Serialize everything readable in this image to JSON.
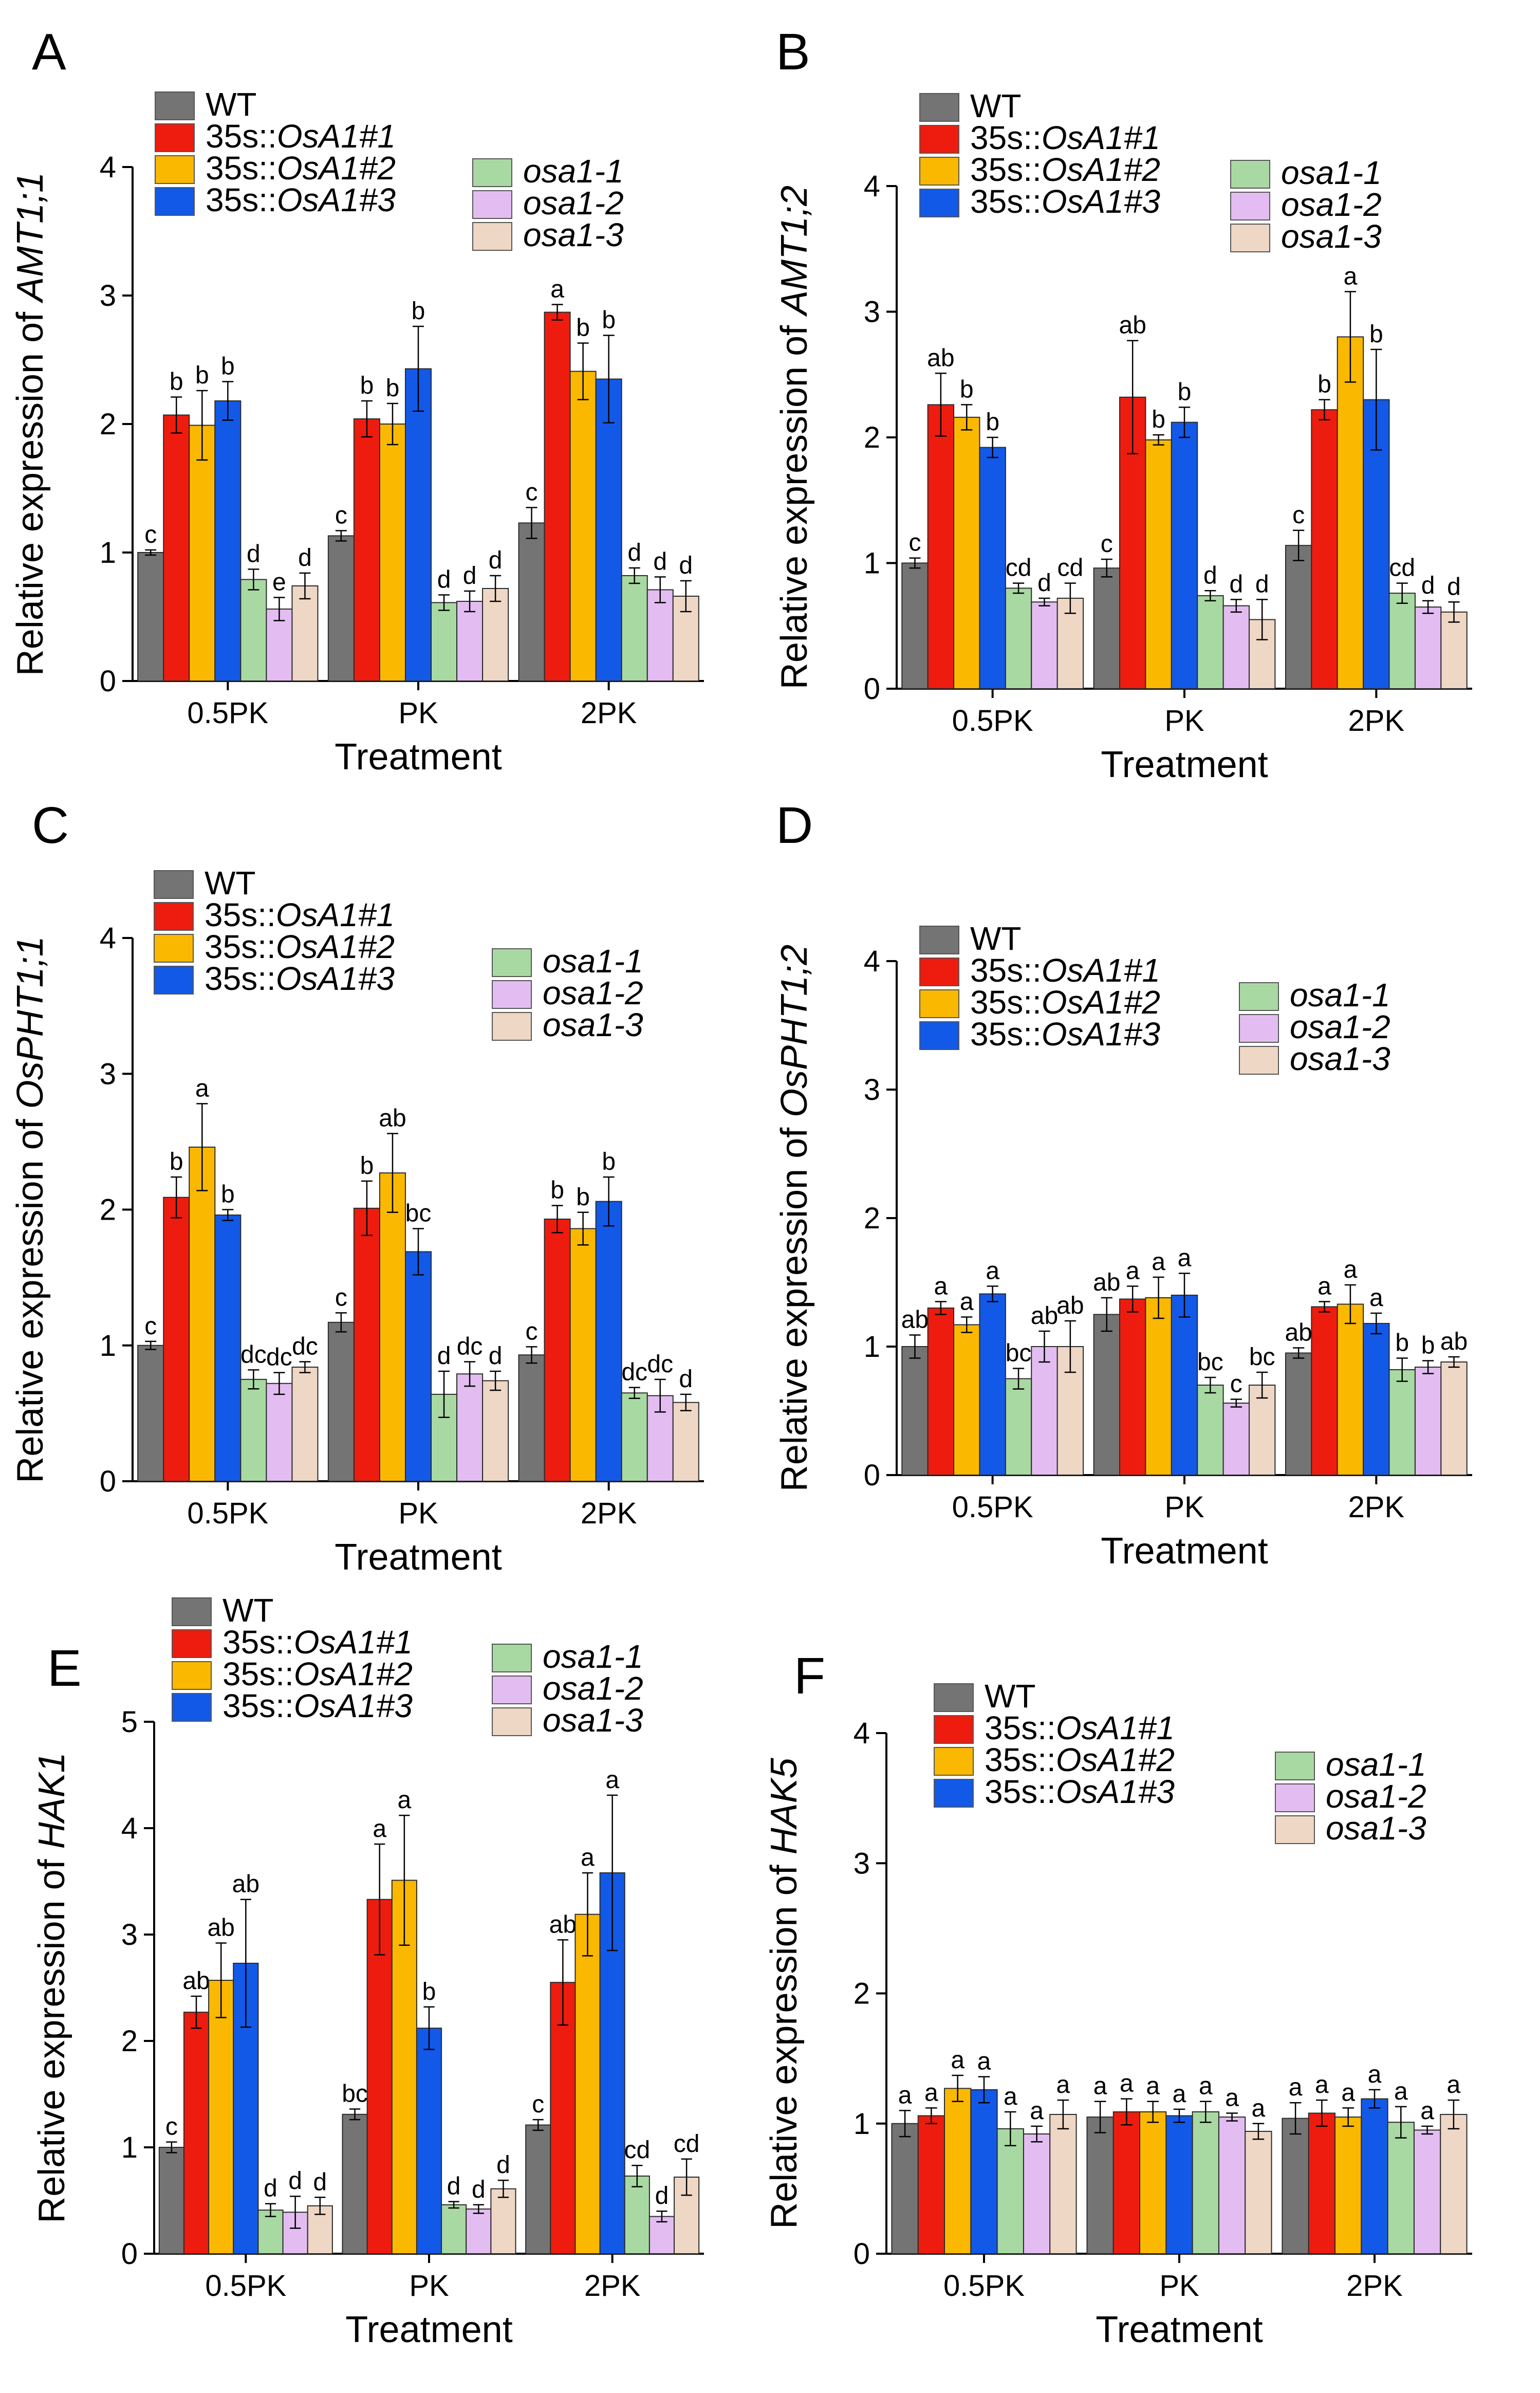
{
  "legend": {
    "items": [
      {
        "label": "WT",
        "italic": "",
        "color": "#747474"
      },
      {
        "label": "35s::",
        "italic": "OsA1#1",
        "color": "#ee1c0e"
      },
      {
        "label": "35s::",
        "italic": "OsA1#2",
        "color": "#fbb800"
      },
      {
        "label": "35s::",
        "italic": "OsA1#3",
        "color": "#1359e8"
      },
      {
        "label": "",
        "italic": "osa1-1",
        "color": "#a9d9a2"
      },
      {
        "label": "",
        "italic": "osa1-2",
        "color": "#e3bdf2"
      },
      {
        "label": "",
        "italic": "osa1-3",
        "color": "#efd7c5"
      }
    ]
  },
  "chart_data": [
    {
      "panel": "A",
      "type": "bar",
      "title": "",
      "ylabel_prefix": "Relative expression of ",
      "ylabel_gene": "AMT1;1",
      "xlabel": "Treatment",
      "ylim": [
        0,
        4
      ],
      "yticks": [
        "0",
        "1",
        "2",
        "3",
        "4"
      ],
      "categories": [
        "0.5PK",
        "PK",
        "2PK"
      ],
      "series": [
        {
          "name": "WT",
          "values": [
            1.0,
            1.13,
            1.23
          ],
          "errors": [
            0.02,
            0.04,
            0.12
          ],
          "letters": [
            "c",
            "c",
            "c"
          ]
        },
        {
          "name": "35s::OsA1#1",
          "values": [
            2.07,
            2.04,
            2.87
          ],
          "errors": [
            0.14,
            0.14,
            0.06
          ],
          "letters": [
            "b",
            "b",
            "a"
          ]
        },
        {
          "name": "35s::OsA1#2",
          "values": [
            1.99,
            2.0,
            2.41
          ],
          "errors": [
            0.27,
            0.16,
            0.22
          ],
          "letters": [
            "b",
            "b",
            "b"
          ]
        },
        {
          "name": "35s::OsA1#3",
          "values": [
            2.18,
            2.43,
            2.35
          ],
          "errors": [
            0.15,
            0.33,
            0.34
          ],
          "letters": [
            "b",
            "b",
            "b"
          ]
        },
        {
          "name": "osa1-1",
          "values": [
            0.79,
            0.61,
            0.82
          ],
          "errors": [
            0.08,
            0.06,
            0.06
          ],
          "letters": [
            "d",
            "d",
            "d"
          ]
        },
        {
          "name": "osa1-2",
          "values": [
            0.56,
            0.62,
            0.71
          ],
          "errors": [
            0.09,
            0.08,
            0.1
          ],
          "letters": [
            "e",
            "d",
            "d"
          ]
        },
        {
          "name": "osa1-3",
          "values": [
            0.74,
            0.72,
            0.66
          ],
          "errors": [
            0.1,
            0.1,
            0.12
          ],
          "letters": [
            "d",
            "d",
            "d"
          ]
        }
      ]
    },
    {
      "panel": "B",
      "type": "bar",
      "title": "",
      "ylabel_prefix": "Relative expression of ",
      "ylabel_gene": "AMT1;2",
      "xlabel": "Treatment",
      "ylim": [
        0,
        4
      ],
      "yticks": [
        "0",
        "1",
        "2",
        "3",
        "4"
      ],
      "categories": [
        "0.5PK",
        "PK",
        "2PK"
      ],
      "series": [
        {
          "name": "WT",
          "values": [
            1.0,
            0.96,
            1.14
          ],
          "errors": [
            0.04,
            0.07,
            0.12
          ],
          "letters": [
            "c",
            "c",
            "c"
          ]
        },
        {
          "name": "35s::OsA1#1",
          "values": [
            2.26,
            2.32,
            2.22
          ],
          "errors": [
            0.25,
            0.45,
            0.08
          ],
          "letters": [
            "ab",
            "ab",
            "b"
          ]
        },
        {
          "name": "35s::OsA1#2",
          "values": [
            2.16,
            1.98,
            2.8
          ],
          "errors": [
            0.1,
            0.04,
            0.36
          ],
          "letters": [
            "b",
            "b",
            "a"
          ]
        },
        {
          "name": "35s::OsA1#3",
          "values": [
            1.92,
            2.12,
            2.3
          ],
          "errors": [
            0.08,
            0.12,
            0.4
          ],
          "letters": [
            "b",
            "b",
            "b"
          ]
        },
        {
          "name": "osa1-1",
          "values": [
            0.8,
            0.74,
            0.76
          ],
          "errors": [
            0.04,
            0.04,
            0.08
          ],
          "letters": [
            "cd",
            "d",
            "cd"
          ]
        },
        {
          "name": "osa1-2",
          "values": [
            0.69,
            0.66,
            0.65
          ],
          "errors": [
            0.03,
            0.05,
            0.05
          ],
          "letters": [
            "d",
            "d",
            "d"
          ]
        },
        {
          "name": "osa1-3",
          "values": [
            0.72,
            0.55,
            0.61
          ],
          "errors": [
            0.12,
            0.16,
            0.08
          ],
          "letters": [
            "cd",
            "d",
            "d"
          ]
        }
      ]
    },
    {
      "panel": "C",
      "type": "bar",
      "title": "",
      "ylabel_prefix": "Relative expression of ",
      "ylabel_gene": "OsPHT1;1",
      "xlabel": "Treatment",
      "ylim": [
        0,
        4
      ],
      "yticks": [
        "0",
        "1",
        "2",
        "3",
        "4"
      ],
      "categories": [
        "0.5PK",
        "PK",
        "2PK"
      ],
      "series": [
        {
          "name": "WT",
          "values": [
            1.0,
            1.17,
            0.93
          ],
          "errors": [
            0.03,
            0.07,
            0.06
          ],
          "letters": [
            "c",
            "c",
            "c"
          ]
        },
        {
          "name": "35s::OsA1#1",
          "values": [
            2.09,
            2.01,
            1.93
          ],
          "errors": [
            0.15,
            0.2,
            0.1
          ],
          "letters": [
            "b",
            "b",
            "b"
          ]
        },
        {
          "name": "35s::OsA1#2",
          "values": [
            2.46,
            2.27,
            1.86
          ],
          "errors": [
            0.32,
            0.29,
            0.12
          ],
          "letters": [
            "a",
            "ab",
            "b"
          ]
        },
        {
          "name": "35s::OsA1#3",
          "values": [
            1.96,
            1.69,
            2.06
          ],
          "errors": [
            0.04,
            0.17,
            0.18
          ],
          "letters": [
            "b",
            "bc",
            "b"
          ]
        },
        {
          "name": "osa1-1",
          "values": [
            0.75,
            0.64,
            0.65
          ],
          "errors": [
            0.07,
            0.17,
            0.04
          ],
          "letters": [
            "dc",
            "d",
            "dc"
          ]
        },
        {
          "name": "osa1-2",
          "values": [
            0.72,
            0.79,
            0.63
          ],
          "errors": [
            0.08,
            0.09,
            0.12
          ],
          "letters": [
            "dc",
            "dc",
            "dc"
          ]
        },
        {
          "name": "osa1-3",
          "values": [
            0.84,
            0.74,
            0.58
          ],
          "errors": [
            0.04,
            0.07,
            0.06
          ],
          "letters": [
            "dc",
            "d",
            "d"
          ]
        }
      ]
    },
    {
      "panel": "D",
      "type": "bar",
      "title": "",
      "ylabel_prefix": "Relative expression of ",
      "ylabel_gene": "OsPHT1;2",
      "xlabel": "Treatment",
      "ylim": [
        0,
        4
      ],
      "yticks": [
        "0",
        "1",
        "2",
        "3",
        "4"
      ],
      "categories": [
        "0.5PK",
        "PK",
        "2PK"
      ],
      "series": [
        {
          "name": "WT",
          "values": [
            1.0,
            1.25,
            0.95
          ],
          "errors": [
            0.09,
            0.13,
            0.04
          ],
          "letters": [
            "ab",
            "ab",
            "ab"
          ]
        },
        {
          "name": "35s::OsA1#1",
          "values": [
            1.3,
            1.37,
            1.31
          ],
          "errors": [
            0.05,
            0.1,
            0.04
          ],
          "letters": [
            "a",
            "a",
            "a"
          ]
        },
        {
          "name": "35s::OsA1#2",
          "values": [
            1.17,
            1.38,
            1.33
          ],
          "errors": [
            0.06,
            0.16,
            0.15
          ],
          "letters": [
            "a",
            "a",
            "a"
          ]
        },
        {
          "name": "35s::OsA1#3",
          "values": [
            1.41,
            1.4,
            1.18
          ],
          "errors": [
            0.06,
            0.17,
            0.08
          ],
          "letters": [
            "a",
            "a",
            "a"
          ]
        },
        {
          "name": "osa1-1",
          "values": [
            0.75,
            0.7,
            0.82
          ],
          "errors": [
            0.08,
            0.06,
            0.09
          ],
          "letters": [
            "bc",
            "bc",
            "b"
          ]
        },
        {
          "name": "osa1-2",
          "values": [
            1.0,
            0.56,
            0.84
          ],
          "errors": [
            0.12,
            0.03,
            0.05
          ],
          "letters": [
            "ab",
            "c",
            "b"
          ]
        },
        {
          "name": "osa1-3",
          "values": [
            1.0,
            0.7,
            0.88
          ],
          "errors": [
            0.2,
            0.1,
            0.04
          ],
          "letters": [
            "ab",
            "bc",
            "ab"
          ]
        }
      ]
    },
    {
      "panel": "E",
      "type": "bar",
      "title": "",
      "ylabel_prefix": "Relative expression of ",
      "ylabel_gene": "HAK1",
      "xlabel": "Treatment",
      "ylim": [
        0,
        5
      ],
      "yticks": [
        "0",
        "1",
        "2",
        "3",
        "4",
        "5"
      ],
      "categories": [
        "0.5PK",
        "PK",
        "2PK"
      ],
      "series": [
        {
          "name": "WT",
          "values": [
            1.0,
            1.31,
            1.21
          ],
          "errors": [
            0.05,
            0.05,
            0.05
          ],
          "letters": [
            "c",
            "bc",
            "c"
          ]
        },
        {
          "name": "35s::OsA1#1",
          "values": [
            2.27,
            3.33,
            2.55
          ],
          "errors": [
            0.15,
            0.52,
            0.4
          ],
          "letters": [
            "ab",
            "a",
            "ab"
          ]
        },
        {
          "name": "35s::OsA1#2",
          "values": [
            2.57,
            3.51,
            3.19
          ],
          "errors": [
            0.35,
            0.61,
            0.39
          ],
          "letters": [
            "ab",
            "a",
            "a"
          ]
        },
        {
          "name": "35s::OsA1#3",
          "values": [
            2.73,
            2.12,
            3.58
          ],
          "errors": [
            0.6,
            0.2,
            0.73
          ],
          "letters": [
            "ab",
            "b",
            "a"
          ]
        },
        {
          "name": "osa1-1",
          "values": [
            0.41,
            0.46,
            0.73
          ],
          "errors": [
            0.06,
            0.03,
            0.1
          ],
          "letters": [
            "d",
            "d",
            "cd"
          ]
        },
        {
          "name": "osa1-2",
          "values": [
            0.39,
            0.42,
            0.35
          ],
          "errors": [
            0.15,
            0.04,
            0.05
          ],
          "letters": [
            "d",
            "d",
            "d"
          ]
        },
        {
          "name": "osa1-3",
          "values": [
            0.45,
            0.61,
            0.72
          ],
          "errors": [
            0.08,
            0.08,
            0.17
          ],
          "letters": [
            "d",
            "d",
            "cd"
          ]
        }
      ]
    },
    {
      "panel": "F",
      "type": "bar",
      "title": "",
      "ylabel_prefix": "Relative expression of ",
      "ylabel_gene": "HAK5",
      "xlabel": "Treatment",
      "ylim": [
        0,
        4
      ],
      "yticks": [
        "0",
        "1",
        "2",
        "3",
        "4"
      ],
      "categories": [
        "0.5PK",
        "PK",
        "2PK"
      ],
      "series": [
        {
          "name": "WT",
          "values": [
            1.0,
            1.05,
            1.04
          ],
          "errors": [
            0.1,
            0.12,
            0.12
          ],
          "letters": [
            "a",
            "a",
            "a"
          ]
        },
        {
          "name": "35s::OsA1#1",
          "values": [
            1.06,
            1.09,
            1.08
          ],
          "errors": [
            0.06,
            0.1,
            0.1
          ],
          "letters": [
            "a",
            "a",
            "a"
          ]
        },
        {
          "name": "35s::OsA1#2",
          "values": [
            1.27,
            1.09,
            1.05
          ],
          "errors": [
            0.1,
            0.08,
            0.07
          ],
          "letters": [
            "a",
            "a",
            "a"
          ]
        },
        {
          "name": "35s::OsA1#3",
          "values": [
            1.26,
            1.06,
            1.19
          ],
          "errors": [
            0.1,
            0.05,
            0.07
          ],
          "letters": [
            "a",
            "a",
            "a"
          ]
        },
        {
          "name": "osa1-1",
          "values": [
            0.96,
            1.09,
            1.01
          ],
          "errors": [
            0.13,
            0.08,
            0.12
          ],
          "letters": [
            "a",
            "a",
            "a"
          ]
        },
        {
          "name": "osa1-2",
          "values": [
            0.92,
            1.05,
            0.95
          ],
          "errors": [
            0.06,
            0.03,
            0.03
          ],
          "letters": [
            "a",
            "a",
            "a"
          ]
        },
        {
          "name": "osa1-3",
          "values": [
            1.07,
            0.94,
            1.07
          ],
          "errors": [
            0.11,
            0.06,
            0.11
          ],
          "letters": [
            "a",
            "a",
            "a"
          ]
        }
      ]
    }
  ]
}
